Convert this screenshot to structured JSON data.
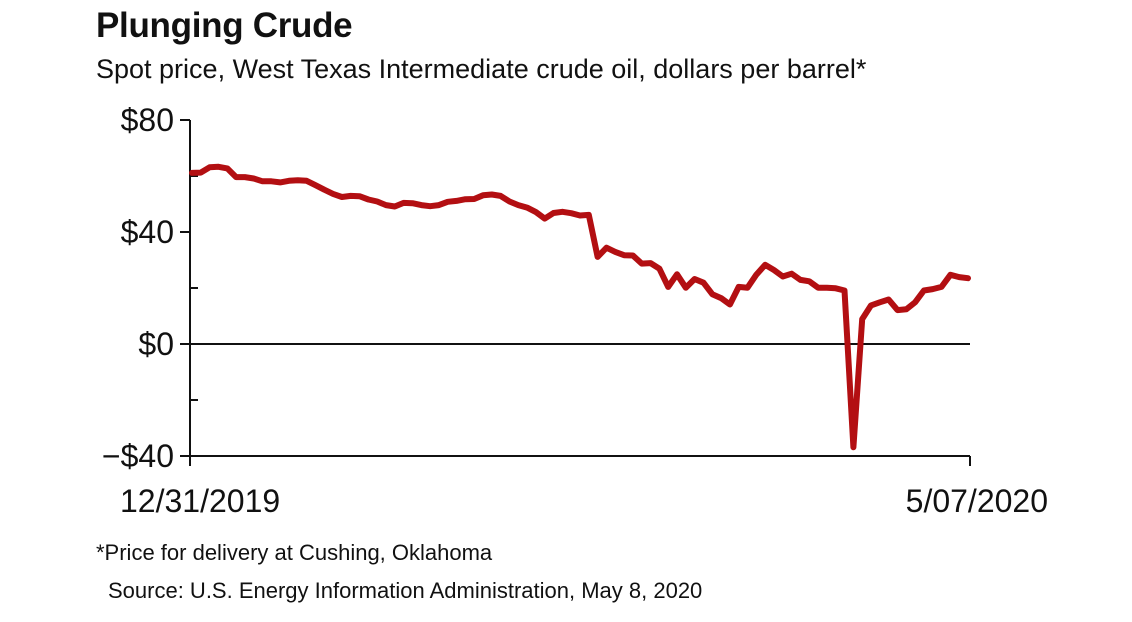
{
  "colors": {
    "line": "#b30f12",
    "axis": "#111111",
    "text": "#111111",
    "background": "#ffffff"
  },
  "chart_data": {
    "type": "line",
    "title": "Plunging Crude",
    "subtitle": "Spot price, West Texas Intermediate crude oil, dollars per barrel*",
    "xlabel": "",
    "ylabel": "",
    "ylim": [
      -40,
      80
    ],
    "yticks": [
      80,
      40,
      0,
      -40
    ],
    "ytick_labels": [
      "$80",
      "$40",
      "$0",
      "−$40"
    ],
    "xtick_labels": [
      "12/31/2019",
      "5/07/2020"
    ],
    "grid": false,
    "zero_line": true,
    "legend": "none",
    "note": "*Price for delivery at Cushing, Oklahoma",
    "source": "Source: U.S. Energy Information Administration, May 8, 2020",
    "series": [
      {
        "values": [
          61.1,
          61.2,
          63.1,
          63.3,
          62.7,
          59.6,
          59.6,
          59.1,
          58.1,
          58.1,
          57.7,
          58.3,
          58.5,
          58.3,
          56.7,
          55.1,
          53.6,
          52.5,
          52.9,
          52.8,
          51.6,
          50.9,
          49.6,
          49.1,
          50.4,
          50.3,
          49.6,
          49.2,
          49.6,
          50.8,
          51.1,
          51.7,
          51.8,
          53.1,
          53.4,
          52.9,
          50.9,
          49.6,
          48.7,
          47.1,
          44.8,
          46.8,
          47.2,
          46.7,
          45.9,
          46.1,
          31.1,
          34.4,
          32.9,
          31.7,
          31.6,
          28.7,
          28.9,
          26.9,
          20.4,
          24.9,
          20.1,
          23.2,
          21.9,
          17.8,
          16.4,
          14.1,
          20.4,
          20.1,
          24.8,
          28.3,
          26.4,
          24.1,
          25.1,
          22.9,
          22.4,
          20.1,
          20.1,
          19.9,
          19.1,
          -36.9,
          8.9,
          13.8,
          14.9,
          15.9,
          12.1,
          12.4,
          14.9,
          19.1,
          19.6,
          20.4,
          24.7,
          23.9,
          23.5
        ]
      }
    ]
  }
}
